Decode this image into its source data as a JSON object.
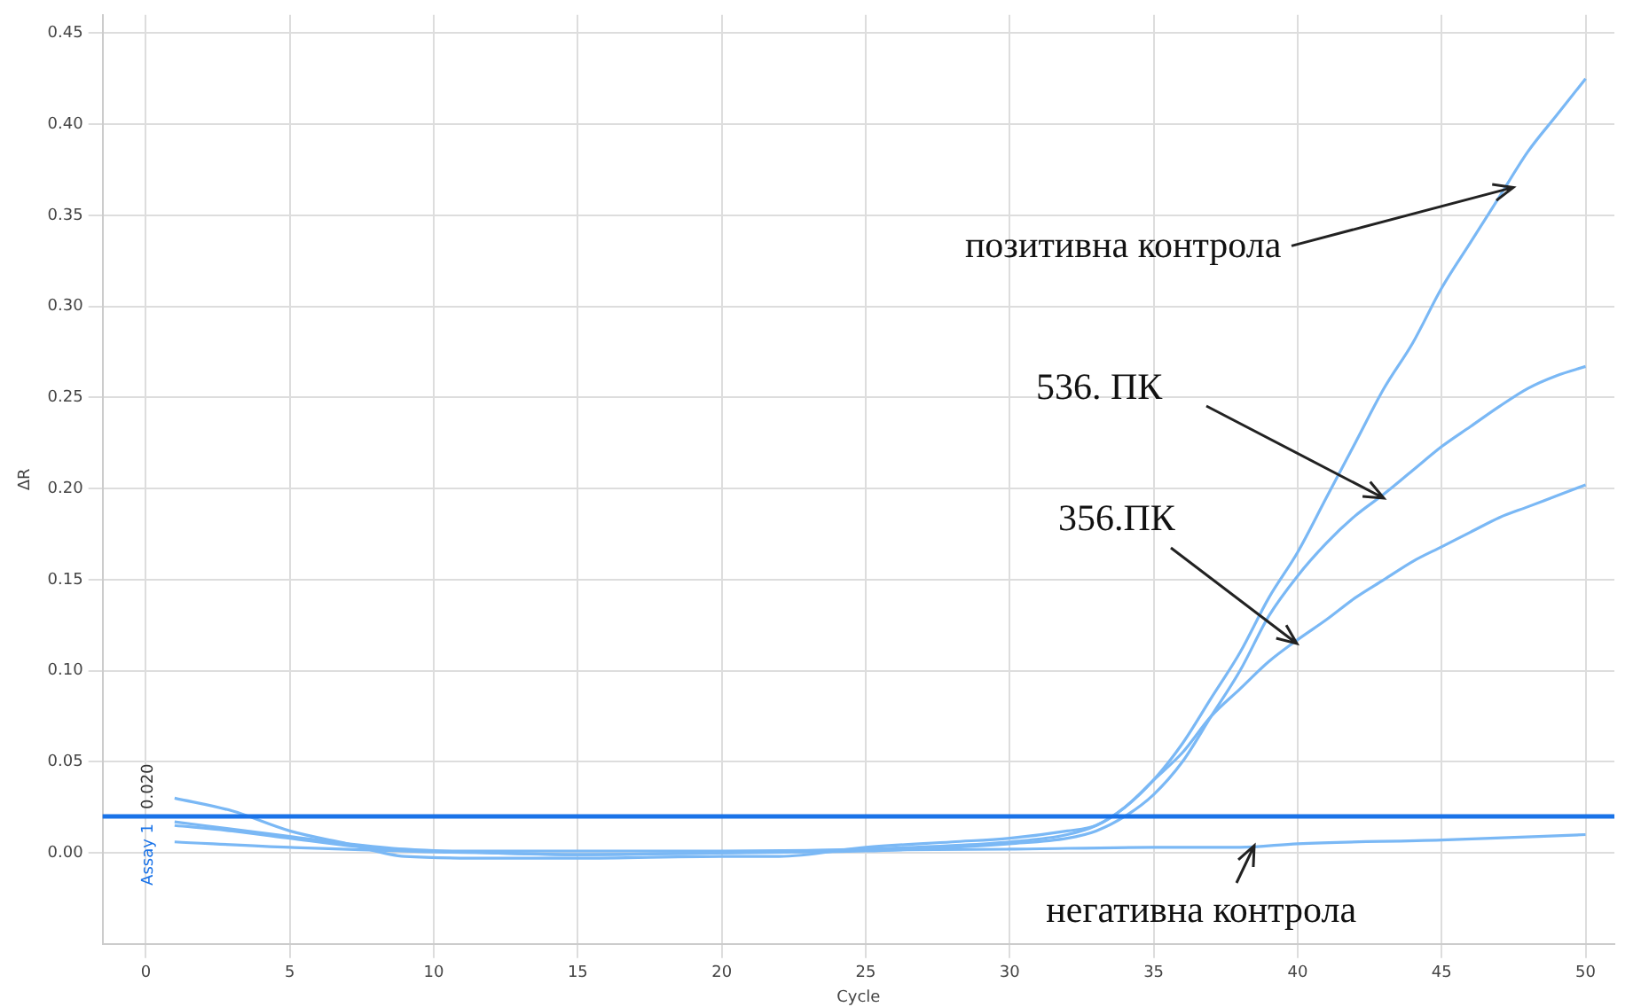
{
  "chart_data": {
    "type": "line",
    "xlabel": "Cycle",
    "ylabel": "ΔR",
    "xlim": [
      -1.5,
      51
    ],
    "ylim": [
      -0.05,
      0.46
    ],
    "xticks": [
      0,
      5,
      10,
      15,
      20,
      25,
      30,
      35,
      40,
      45,
      50
    ],
    "yticks": [
      {
        "value": 0,
        "label": "0.00"
      },
      {
        "value": 0.05,
        "label": "0.05"
      },
      {
        "value": 0.1,
        "label": "0.10"
      },
      {
        "value": 0.15,
        "label": "0.15"
      },
      {
        "value": 0.2,
        "label": "0.20"
      },
      {
        "value": 0.25,
        "label": "0.25"
      },
      {
        "value": 0.3,
        "label": "0.30"
      },
      {
        "value": 0.35,
        "label": "0.35"
      },
      {
        "value": 0.4,
        "label": "0.40"
      },
      {
        "value": 0.45,
        "label": "0.45"
      }
    ],
    "grid": true,
    "legend": false,
    "marker": "none",
    "line_style": "solid",
    "series": [
      {
        "color": "#7ab8f5",
        "x": [
          1,
          3,
          5,
          7,
          9,
          12,
          15,
          20,
          25,
          28,
          30,
          32,
          33,
          34,
          35,
          36,
          37,
          38,
          39,
          40,
          41,
          42,
          43,
          44,
          45,
          46,
          47,
          48,
          49,
          50
        ],
        "values": [
          0.015,
          0.012,
          0.008,
          0.004,
          0.001,
          0,
          -0.001,
          0,
          0.002,
          0.004,
          0.006,
          0.01,
          0.015,
          0.025,
          0.04,
          0.06,
          0.085,
          0.11,
          0.14,
          0.165,
          0.195,
          0.225,
          0.255,
          0.28,
          0.31,
          0.335,
          0.36,
          0.385,
          0.405,
          0.425
        ]
      },
      {
        "color": "#7ab8f5",
        "x": [
          1,
          3,
          5,
          7,
          9,
          12,
          15,
          20,
          25,
          28,
          30,
          32,
          33,
          34,
          35,
          36,
          37,
          38,
          39,
          40,
          41,
          42,
          43,
          44,
          45,
          46,
          47,
          48,
          49,
          50
        ],
        "values": [
          0.017,
          0.013,
          0.009,
          0.005,
          0.002,
          0,
          -0.001,
          0,
          0.001,
          0.003,
          0.005,
          0.008,
          0.012,
          0.02,
          0.032,
          0.05,
          0.075,
          0.1,
          0.13,
          0.152,
          0.17,
          0.185,
          0.197,
          0.21,
          0.223,
          0.234,
          0.245,
          0.255,
          0.262,
          0.267
        ]
      },
      {
        "color": "#7ab8f5",
        "x": [
          1,
          3,
          5,
          7,
          9,
          12,
          15,
          20,
          22,
          25,
          28,
          30,
          32,
          33,
          34,
          35,
          36,
          37,
          38,
          39,
          40,
          41,
          42,
          43,
          44,
          45,
          46,
          47,
          48,
          49,
          50
        ],
        "values": [
          0.03,
          0.023,
          0.012,
          0.005,
          -0.002,
          -0.003,
          -0.003,
          -0.002,
          -0.002,
          0.003,
          0.006,
          0.008,
          0.012,
          0.015,
          0.025,
          0.04,
          0.055,
          0.075,
          0.09,
          0.105,
          0.117,
          0.128,
          0.14,
          0.15,
          0.16,
          0.168,
          0.176,
          0.184,
          0.19,
          0.196,
          0.202
        ]
      },
      {
        "color": "#7ab8f5",
        "x": [
          1,
          5,
          10,
          20,
          30,
          35,
          38,
          40,
          45,
          50
        ],
        "values": [
          0.006,
          0.003,
          0.001,
          0.001,
          0.002,
          0.003,
          0.003,
          0.005,
          0.007,
          0.01
        ]
      }
    ],
    "ref_lines": [
      {
        "axis": "y",
        "value": 0.02,
        "label": "0.020",
        "color": "#1a73e8"
      }
    ],
    "annotations": [
      {
        "text": "позитивна контрола",
        "x": 47.5,
        "y": 0.365
      },
      {
        "text": "536. ПК",
        "x": 43,
        "y": 0.195
      },
      {
        "text": "356.ПК",
        "x": 40,
        "y": 0.115
      },
      {
        "text": "негативна контрола",
        "x": 38.5,
        "y": 0.004
      },
      "Assay 1"
    ]
  }
}
